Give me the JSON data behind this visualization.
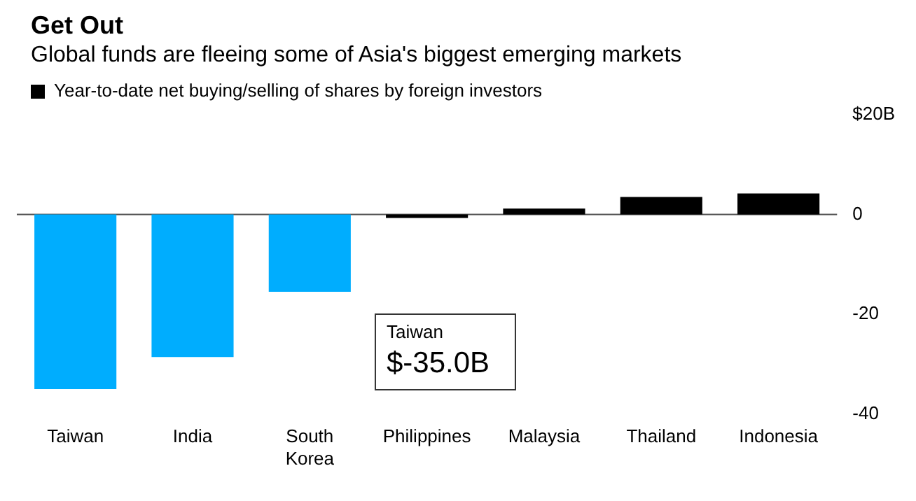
{
  "chart_data": {
    "type": "bar",
    "title": "Get Out",
    "subtitle": "Global funds are fleeing some of Asia's biggest emerging markets",
    "categories": [
      "Taiwan",
      "India",
      "South Korea",
      "Philippines",
      "Malaysia",
      "Thailand",
      "Indonesia"
    ],
    "series": [
      {
        "name": "Year-to-date net buying/selling of shares by foreign investors",
        "color": "#000000",
        "colors": [
          "#00adfe",
          "#00adfe",
          "#00adfe",
          "#000000",
          "#000000",
          "#000000",
          "#000000"
        ],
        "values": [
          -35.0,
          -28.6,
          -15.5,
          -0.7,
          1.2,
          3.5,
          4.2
        ]
      }
    ],
    "ylim": [
      -40,
      20
    ],
    "yticks": [
      {
        "value": 20,
        "label": "$20B"
      },
      0,
      -20,
      -40
    ],
    "grid": false,
    "legend": "top left",
    "ref_lines": [
      {
        "axis": "y",
        "value": 0,
        "color": "#555555"
      }
    ],
    "annotations": [
      "Taiwan $-35.0B"
    ]
  }
}
